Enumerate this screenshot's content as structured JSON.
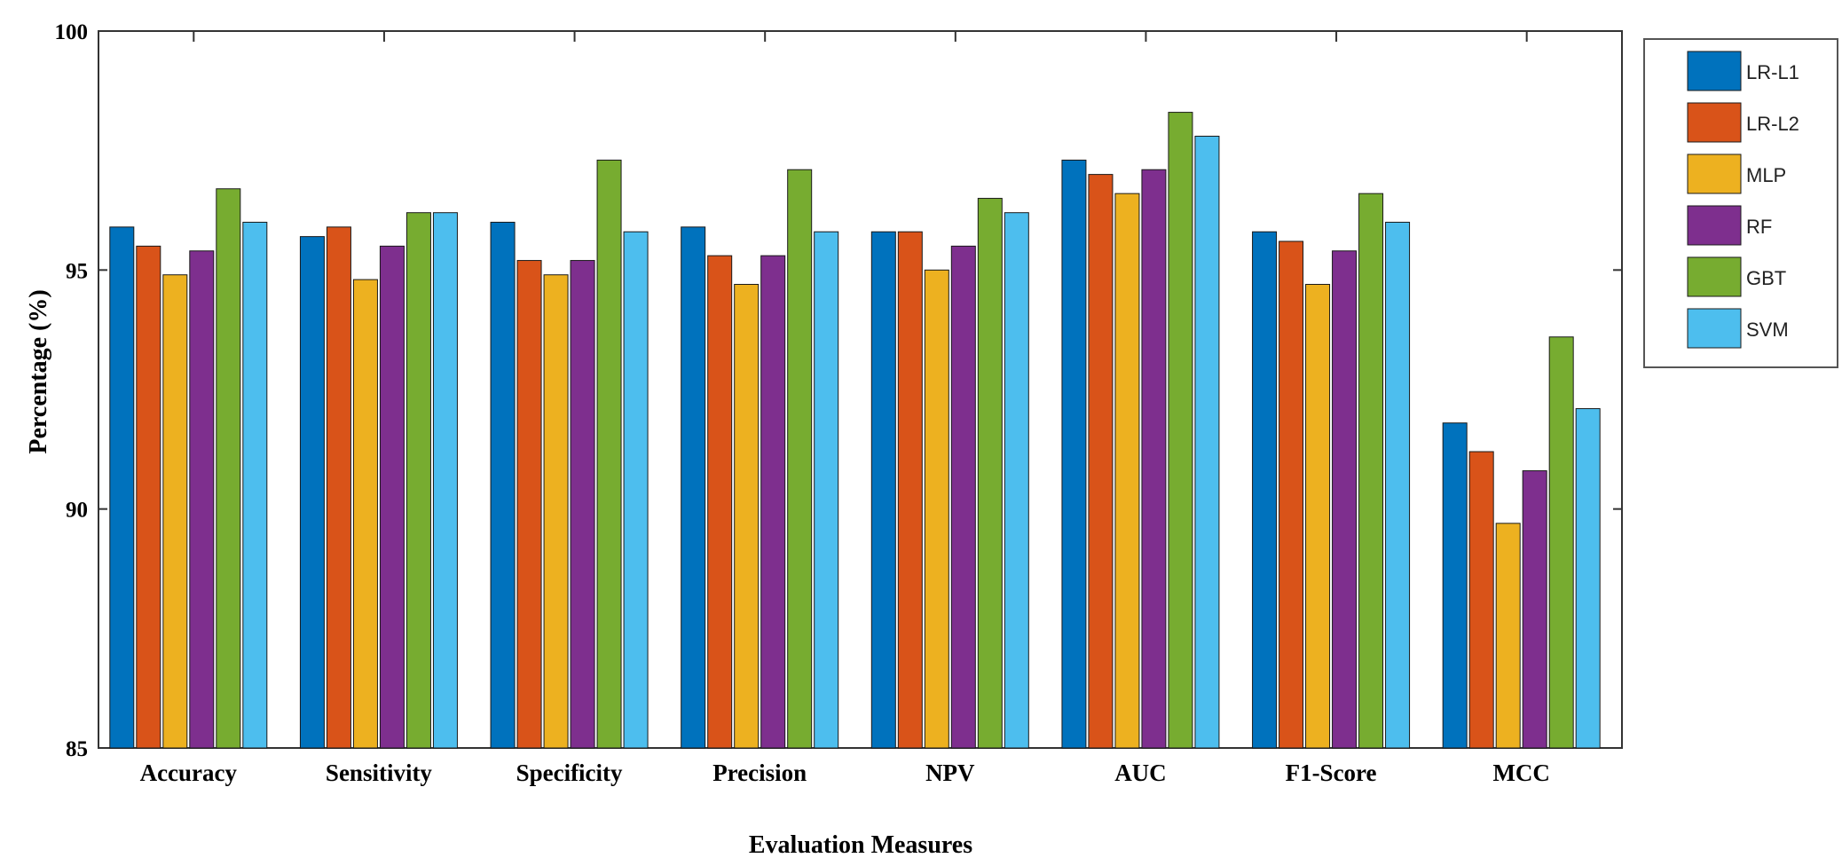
{
  "chart_data": {
    "type": "bar",
    "title": "",
    "xlabel": "Evaluation Measures",
    "ylabel": "Percentage (%)",
    "ylim": [
      85,
      100
    ],
    "yticks": [
      85,
      90,
      95,
      100
    ],
    "grid": false,
    "legend_position": "right-top",
    "categories": [
      "Accuracy",
      "Sensitivity",
      "Specificity",
      "Precision",
      "NPV",
      "AUC",
      "F1-Score",
      "MCC"
    ],
    "series": [
      {
        "name": "LR-L1",
        "color": "#0072BD",
        "values": [
          95.9,
          95.7,
          96.0,
          95.9,
          95.8,
          97.3,
          95.8,
          91.8
        ]
      },
      {
        "name": "LR-L2",
        "color": "#D95319",
        "values": [
          95.5,
          95.9,
          95.2,
          95.3,
          95.8,
          97.0,
          95.6,
          91.2
        ]
      },
      {
        "name": "MLP",
        "color": "#EDB120",
        "values": [
          94.9,
          94.8,
          94.9,
          94.7,
          95.0,
          96.6,
          94.7,
          89.7
        ]
      },
      {
        "name": "RF",
        "color": "#7E2F8E",
        "values": [
          95.4,
          95.5,
          95.2,
          95.3,
          95.5,
          97.1,
          95.4,
          90.8
        ]
      },
      {
        "name": "GBT",
        "color": "#77AC30",
        "values": [
          96.7,
          96.2,
          97.3,
          97.1,
          96.5,
          98.3,
          96.6,
          93.6
        ]
      },
      {
        "name": "SVM",
        "color": "#4DBEEE",
        "values": [
          96.0,
          96.2,
          95.8,
          95.8,
          96.2,
          97.8,
          96.0,
          92.1
        ]
      }
    ]
  }
}
